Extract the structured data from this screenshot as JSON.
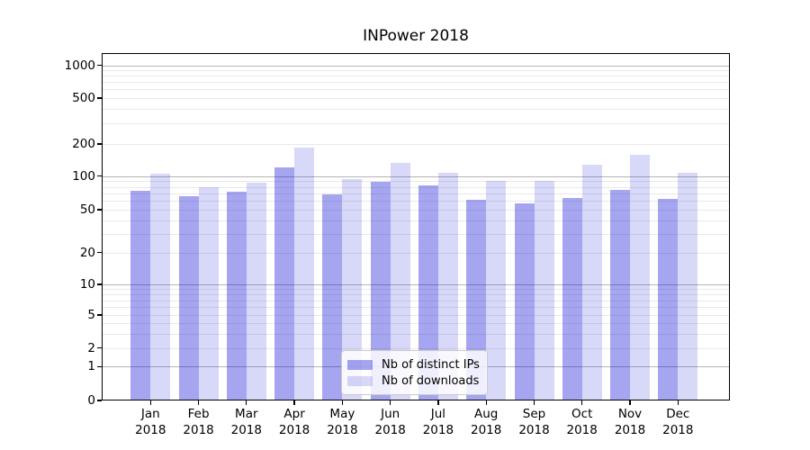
{
  "title": "INPower 2018",
  "colors": {
    "bar_distinct_ips": "rgba(10,10,215,0.37)",
    "bar_downloads": "rgba(10,10,215,0.16)",
    "grid_major": "#b5b5b5",
    "grid_minor": "#e9e9e9",
    "axis": "#000000"
  },
  "chart_data": {
    "type": "bar",
    "title": "INPower 2018",
    "categories": [
      "Jan",
      "Feb",
      "Mar",
      "Apr",
      "May",
      "Jun",
      "Jul",
      "Aug",
      "Sep",
      "Oct",
      "Nov",
      "Dec"
    ],
    "year": "2018",
    "series": [
      {
        "name": "Nb of distinct IPs",
        "values": [
          74,
          66,
          72,
          120,
          69,
          89,
          83,
          61,
          57,
          64,
          76,
          63
        ]
      },
      {
        "name": "Nb of downloads",
        "values": [
          106,
          80,
          88,
          185,
          94,
          132,
          107,
          90,
          91,
          127,
          160,
          108
        ]
      }
    ],
    "yscale": "symlog",
    "yticks": [
      0,
      1,
      2,
      5,
      10,
      20,
      50,
      100,
      200,
      500,
      1000
    ],
    "ylim": [
      0,
      1300
    ],
    "xlabel": "",
    "ylabel": "",
    "grid": true,
    "legend_position": "lower center"
  }
}
